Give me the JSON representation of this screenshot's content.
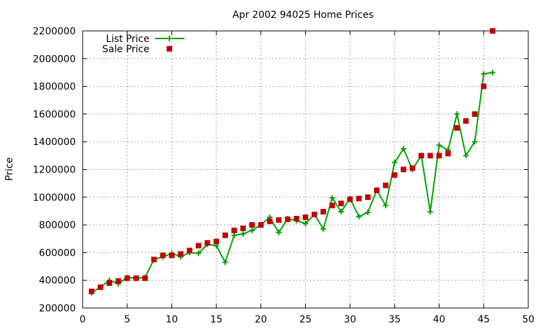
{
  "chart_data": {
    "type": "line",
    "title": "Apr 2002 94025 Home Prices",
    "xlabel": "",
    "ylabel": "Price",
    "xlim": [
      0,
      50
    ],
    "ylim": [
      200000,
      2200000
    ],
    "xticks": [
      0,
      5,
      10,
      15,
      20,
      25,
      30,
      35,
      40,
      45,
      50
    ],
    "yticks": [
      200000,
      400000,
      600000,
      800000,
      1000000,
      1200000,
      1400000,
      1600000,
      1800000,
      2000000,
      2200000
    ],
    "grid": true,
    "legend_position": "top-left",
    "series": [
      {
        "name": "List Price",
        "style": "line-points",
        "marker": "plus",
        "color": "#00a000",
        "x": [
          1,
          2,
          3,
          4,
          5,
          6,
          7,
          8,
          9,
          10,
          11,
          12,
          13,
          14,
          15,
          16,
          17,
          18,
          19,
          20,
          21,
          22,
          23,
          24,
          25,
          26,
          27,
          28,
          29,
          30,
          31,
          32,
          33,
          34,
          35,
          36,
          37,
          38,
          39,
          40,
          41,
          42,
          43,
          44,
          45,
          46
        ],
        "values": [
          310000,
          350000,
          400000,
          375000,
          420000,
          415000,
          420000,
          550000,
          570000,
          595000,
          570000,
          600000,
          595000,
          660000,
          650000,
          530000,
          725000,
          735000,
          760000,
          800000,
          855000,
          745000,
          845000,
          830000,
          810000,
          875000,
          770000,
          995000,
          895000,
          990000,
          860000,
          890000,
          1050000,
          940000,
          1250000,
          1350000,
          1200000,
          1300000,
          895000,
          1375000,
          1340000,
          1600000,
          1300000,
          1400000,
          1890000,
          1900000
        ]
      },
      {
        "name": "Sale Price",
        "style": "points",
        "marker": "square",
        "color": "#c00000",
        "x": [
          1,
          2,
          3,
          4,
          5,
          6,
          7,
          8,
          9,
          10,
          11,
          12,
          13,
          14,
          15,
          16,
          17,
          18,
          19,
          20,
          21,
          22,
          23,
          24,
          25,
          26,
          27,
          28,
          29,
          30,
          31,
          32,
          33,
          34,
          35,
          36,
          37,
          38,
          39,
          40,
          41,
          42,
          43,
          44,
          45,
          46
        ],
        "values": [
          320000,
          350000,
          380000,
          395000,
          415000,
          415000,
          415000,
          550000,
          580000,
          580000,
          590000,
          615000,
          650000,
          670000,
          680000,
          725000,
          760000,
          775000,
          800000,
          800000,
          825000,
          835000,
          840000,
          845000,
          855000,
          875000,
          895000,
          940000,
          955000,
          985000,
          990000,
          1000000,
          1050000,
          1085000,
          1160000,
          1200000,
          1210000,
          1300000,
          1300000,
          1300000,
          1315000,
          1500000,
          1550000,
          1600000,
          1800000,
          2200000
        ]
      }
    ]
  }
}
